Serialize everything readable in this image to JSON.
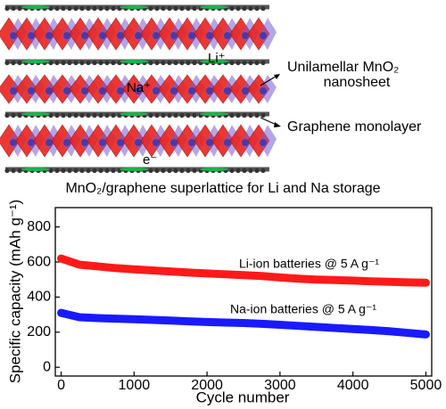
{
  "diagram": {
    "ion_labels": [
      "Li⁺",
      "Na⁺",
      "e⁻"
    ],
    "callouts": [
      [
        "Unilamellar MnO₂",
        "nanosheet"
      ],
      [
        "Graphene monolayer"
      ]
    ],
    "caption": "MnO₂/graphene superlattice for Li and Na storage"
  },
  "chart_data": {
    "type": "line",
    "xlabel": "Cycle number",
    "ylabel": "Specific capacity (mAh g⁻¹)",
    "x": [
      0,
      250,
      500,
      750,
      1000,
      1250,
      1500,
      1750,
      2000,
      2250,
      2500,
      2750,
      3000,
      3250,
      3500,
      3750,
      4000,
      4250,
      4500,
      4750,
      5000
    ],
    "series": [
      {
        "name": "Li-ion batteries @ 5 A g⁻¹",
        "color": "#ff1a1a",
        "values": [
          620,
          585,
          575,
          565,
          558,
          552,
          546,
          540,
          535,
          530,
          525,
          520,
          512,
          505,
          500,
          497,
          494,
          490,
          487,
          484,
          482
        ]
      },
      {
        "name": "Na-ion batteries @ 5 A g⁻¹",
        "color": "#1a1aff",
        "values": [
          310,
          285,
          280,
          277,
          274,
          270,
          266,
          262,
          258,
          255,
          252,
          248,
          242,
          236,
          230,
          224,
          218,
          212,
          205,
          196,
          187
        ]
      }
    ],
    "xlim": [
      -80,
      5080
    ],
    "ylim": [
      -50,
      910
    ],
    "xticks": [
      0,
      1000,
      2000,
      3000,
      4000,
      5000
    ],
    "yticks": [
      0,
      200,
      400,
      600,
      800
    ]
  }
}
